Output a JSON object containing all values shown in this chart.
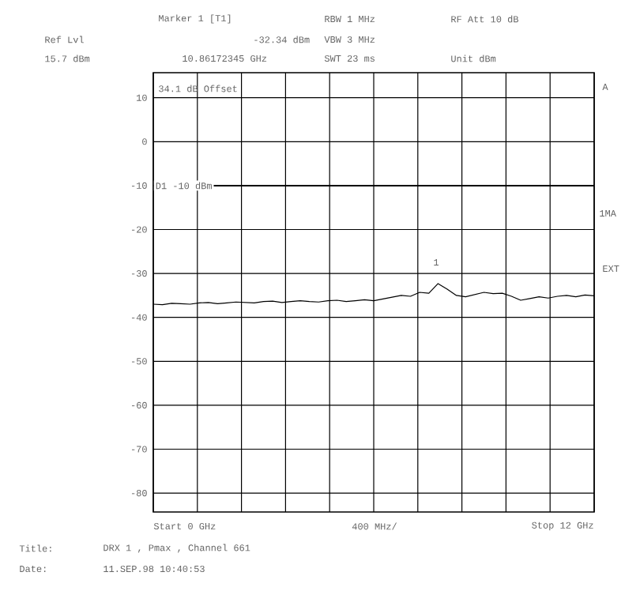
{
  "chart_data": {
    "type": "line",
    "categories": [
      null,
      null,
      null,
      null,
      null,
      null,
      null,
      null,
      null,
      null,
      null,
      null,
      null,
      null,
      null,
      null,
      null,
      null,
      null,
      null,
      null,
      null,
      null,
      null,
      null,
      null,
      null,
      null,
      null,
      null,
      null,
      null,
      null,
      null,
      null,
      null,
      null,
      null,
      null,
      null,
      null,
      null,
      null,
      null,
      null,
      null,
      null,
      null,
      null
    ],
    "ylim": [
      -84.3,
      15.7
    ],
    "yticks": [
      10,
      0,
      -10,
      -20,
      -30,
      -40,
      -50,
      -60,
      -70,
      -80
    ],
    "grid": true,
    "ref_lines": [
      {
        "axis": "y",
        "value": -10,
        "label": "D1 -10 dBm",
        "color": "#000000"
      }
    ],
    "series": [
      {
        "color": "#000000",
        "values": [
          -37.0,
          -37.1,
          -36.8,
          -36.9,
          -37.0,
          -36.7,
          -36.6,
          -36.9,
          -36.7,
          -36.5,
          -36.6,
          -36.7,
          -36.4,
          -36.3,
          -36.6,
          -36.4,
          -36.2,
          -36.4,
          -36.5,
          -36.2,
          -36.1,
          -36.4,
          -36.2,
          -36.0,
          -36.2,
          -35.8,
          -35.4,
          -35.0,
          -35.2,
          -34.3,
          -34.5,
          -32.3,
          -33.6,
          -35.0,
          -35.3,
          -34.8,
          -34.3,
          -34.6,
          -34.5,
          -35.2,
          -36.1,
          -35.7,
          -35.3,
          -35.6,
          -35.2,
          -35.0,
          -35.3,
          -34.9,
          -35.1
        ]
      }
    ],
    "annotations": [
      "Marker 1 [T1]",
      "Ref Lvl",
      "-32.34 dBm",
      "15.7 dBm",
      "10.86172345 GHz",
      "RBW 1 MHz",
      "VBW 3 MHz",
      "SWT 23 ms",
      "RF Att 10 dB",
      "Unit dBm",
      "34.1 dB Offset",
      "A",
      "1MA",
      "EXT",
      "Title:",
      "DRX 1 , Pmax , Channel 661",
      "Date:",
      "11.SEP.98 10:40:53",
      "Start 0 GHz",
      "400 MHz/",
      "Stop 12 GHz",
      "1"
    ]
  }
}
